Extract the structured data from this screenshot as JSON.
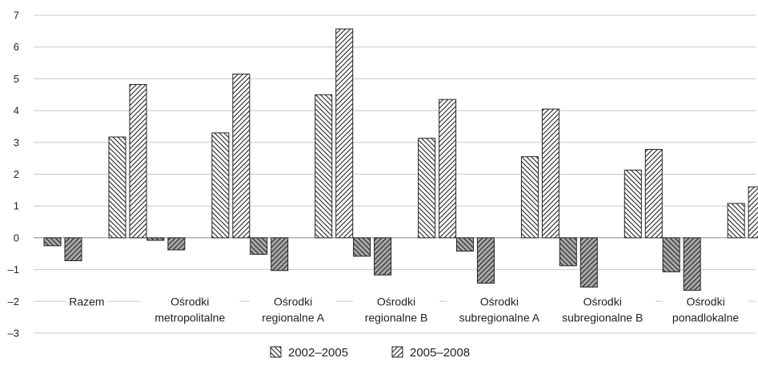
{
  "chart_data": {
    "type": "bar",
    "title": "",
    "xlabel": "",
    "ylabel": "",
    "ylim": [
      -3,
      7
    ],
    "yticks": [
      7,
      6,
      5,
      4,
      3,
      2,
      1,
      0,
      -1,
      -2,
      -3
    ],
    "ytick_labels": [
      "7",
      "6",
      "5",
      "4",
      "3",
      "2",
      "1",
      "0",
      "–1",
      "–2",
      "–3"
    ],
    "grid": "horizontal",
    "legend_position": "bottom",
    "categories": [
      [
        "Razem"
      ],
      [
        "Ośrodki",
        "metropolitalne"
      ],
      [
        "Ośrodki",
        "regionalne A"
      ],
      [
        "Ośrodki",
        "regionalne B"
      ],
      [
        "Ośrodki",
        "subregionalne A"
      ],
      [
        "Ośrodki",
        "subregionalne B"
      ],
      [
        "Ośrodki",
        "ponadlokalne"
      ]
    ],
    "bar_order": [
      "group_1_left",
      "group_2_left",
      "group_1_right",
      "group_2_right"
    ],
    "series": [
      {
        "name": "2002–2005",
        "hatch": "backslash",
        "groups": [
          [
            -0.25,
            3.17
          ],
          [
            -0.08,
            3.3
          ],
          [
            -0.52,
            4.5
          ],
          [
            -0.58,
            3.13
          ],
          [
            -0.42,
            2.55
          ],
          [
            -0.88,
            2.13
          ],
          [
            -1.07,
            1.08
          ]
        ]
      },
      {
        "name": "2005–2008",
        "hatch": "slash",
        "groups": [
          [
            -0.72,
            4.82
          ],
          [
            -0.38,
            5.15
          ],
          [
            -1.03,
            6.57
          ],
          [
            -1.17,
            4.35
          ],
          [
            -1.43,
            4.05
          ],
          [
            -1.55,
            2.78
          ],
          [
            -1.65,
            1.6
          ]
        ]
      }
    ],
    "colors": {
      "positive_fill": "#ffffff",
      "negative_fill": "#aaaaaa",
      "bar_stroke": "#222222",
      "grid": "#c8c8c8"
    }
  }
}
